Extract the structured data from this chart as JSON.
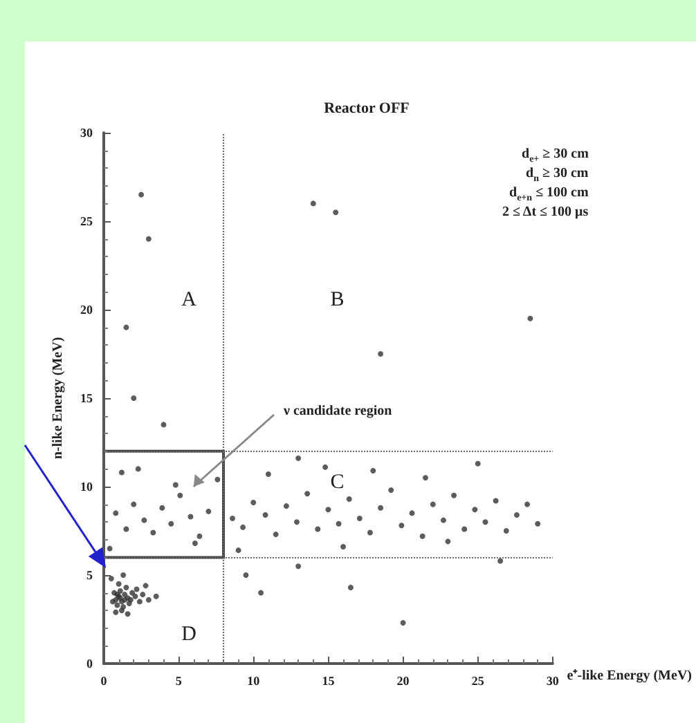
{
  "chart_data": {
    "type": "scatter",
    "title": "Reactor OFF",
    "xlabel": "e⁺-like Energy (MeV)",
    "ylabel": "n-like Energy (MeV)",
    "xlim": [
      0,
      30
    ],
    "ylim": [
      0,
      30
    ],
    "xticks": [
      0,
      5,
      10,
      15,
      20,
      25,
      30
    ],
    "yticks": [
      0,
      5,
      10,
      15,
      20,
      25,
      30
    ],
    "grid": false,
    "marker": "circle",
    "ref_lines": [
      {
        "axis": "x",
        "value": 8,
        "line_style": "dotted"
      },
      {
        "axis": "y",
        "value": 6,
        "line_style": "dotted"
      },
      {
        "axis": "y",
        "value": 12,
        "line_style": "dotted"
      }
    ],
    "annotations": [
      "A",
      "B",
      "C",
      "D",
      "d$_{e+}$ ≥ 30 cm",
      "d$_{n}$ ≥ 30 cm",
      "d$_{e+n}$ ≤ 100 cm",
      "2 ≤ Δt ≤ 100 μs",
      "ν candidate region"
    ],
    "series": [
      {
        "color": "#333333",
        "x": [
          0.8,
          1.0,
          1.2,
          1.4,
          0.9,
          1.1,
          1.6,
          1.3,
          0.7,
          1.8,
          2.1,
          2.4,
          1.5,
          1.0,
          0.6,
          1.2,
          1.9,
          2.6,
          3.0,
          1.4,
          1.1,
          0.9,
          1.7,
          2.2,
          0.5,
          1.3,
          3.5,
          1.6,
          0.8,
          2.8,
          0.8,
          1.5,
          2.0,
          2.7,
          3.3,
          3.9,
          4.5,
          5.1,
          5.8,
          6.4,
          7.0,
          7.6,
          1.2,
          2.3,
          4.8,
          6.1,
          0.4,
          8.6,
          9.3,
          10.0,
          10.8,
          11.5,
          12.2,
          12.9,
          13.6,
          14.3,
          15.0,
          15.7,
          16.4,
          17.1,
          17.8,
          18.5,
          19.2,
          19.9,
          20.6,
          21.3,
          22.0,
          22.7,
          23.4,
          24.1,
          24.8,
          25.5,
          26.2,
          26.9,
          27.6,
          28.3,
          29.0,
          11.0,
          14.8,
          18.0,
          21.5,
          25.0,
          16.0,
          23.0,
          9.0,
          13.0,
          10.5,
          13.0,
          16.5,
          26.5,
          20.0,
          4.0,
          2.0,
          1.5,
          3.0,
          2.5,
          14.0,
          15.5,
          28.5,
          18.5,
          9.5
        ],
        "values": [
          3.6,
          3.8,
          3.5,
          3.9,
          3.3,
          4.1,
          3.7,
          3.2,
          4.0,
          3.6,
          3.8,
          3.5,
          4.3,
          4.5,
          3.5,
          3.0,
          4.0,
          3.9,
          3.6,
          3.6,
          3.7,
          3.9,
          3.4,
          4.2,
          4.8,
          5.0,
          3.8,
          2.8,
          2.9,
          4.4,
          8.5,
          7.6,
          9.0,
          8.1,
          7.4,
          8.8,
          7.9,
          9.5,
          8.3,
          7.2,
          8.6,
          10.4,
          10.8,
          11.0,
          10.1,
          6.8,
          6.5,
          8.2,
          7.7,
          9.1,
          8.4,
          7.3,
          8.9,
          8.0,
          9.6,
          7.6,
          8.7,
          7.9,
          9.3,
          8.2,
          7.4,
          8.8,
          9.8,
          7.8,
          8.5,
          7.2,
          9.0,
          8.1,
          9.5,
          7.6,
          8.7,
          8.0,
          9.2,
          7.5,
          8.4,
          9.0,
          7.9,
          10.7,
          11.1,
          10.9,
          10.5,
          11.3,
          6.6,
          6.9,
          6.4,
          11.6,
          4.0,
          5.5,
          4.3,
          5.8,
          2.3,
          13.5,
          15.0,
          19.0,
          24.0,
          26.5,
          26.0,
          25.5,
          19.5,
          17.5,
          5.0
        ]
      }
    ]
  }
}
